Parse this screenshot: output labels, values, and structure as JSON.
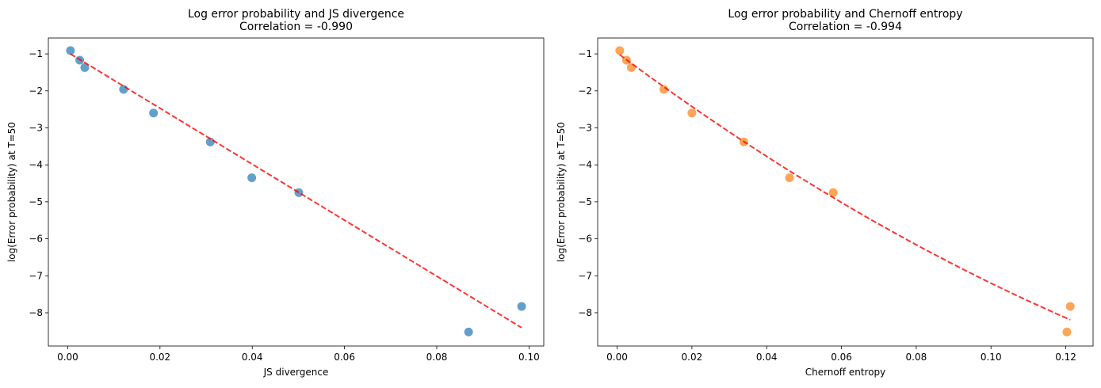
{
  "chart_data": [
    {
      "type": "scatter",
      "title": "Log error probability and JS divergence",
      "subtitle": "Correlation = -0.990",
      "xlabel": "JS divergence",
      "ylabel": "log(Error probability) at T=50",
      "xlim": [
        -0.0042,
        0.1032
      ],
      "ylim": [
        -8.9,
        -0.57
      ],
      "xticks": [
        0.0,
        0.02,
        0.04,
        0.06,
        0.08,
        0.1
      ],
      "xtick_labels": [
        "0.00",
        "0.02",
        "0.04",
        "0.06",
        "0.08",
        "0.10"
      ],
      "yticks": [
        -1,
        -2,
        -3,
        -4,
        -5,
        -6,
        -7,
        -8
      ],
      "ytick_labels": [
        "−1",
        "−2",
        "−3",
        "−4",
        "−5",
        "−6",
        "−7",
        "−8"
      ],
      "grid": false,
      "point_color": "#1f77b4",
      "x": [
        0.0006,
        0.0026,
        0.0037,
        0.0121,
        0.0186,
        0.0309,
        0.0399,
        0.0501,
        0.0869,
        0.0984
      ],
      "y": [
        -0.91,
        -1.17,
        -1.37,
        -1.96,
        -2.6,
        -3.38,
        -4.35,
        -4.75,
        -8.52,
        -7.83
      ],
      "fit": {
        "color": "#ff0000",
        "style": "dashed",
        "coefficients": [
          -0.955,
          -75.7,
          0
        ]
      }
    },
    {
      "type": "scatter",
      "title": "Log error probability and Chernoff entropy",
      "subtitle": "Correlation = -0.994",
      "xlabel": "Chernoff entropy",
      "ylabel": "log(Error probability) at T=50",
      "xlim": [
        -0.0052,
        0.1273
      ],
      "ylim": [
        -8.9,
        -0.57
      ],
      "xticks": [
        0.0,
        0.02,
        0.04,
        0.06,
        0.08,
        0.1,
        0.12
      ],
      "xtick_labels": [
        "0.00",
        "0.02",
        "0.04",
        "0.06",
        "0.08",
        "0.10",
        "0.12"
      ],
      "yticks": [
        -1,
        -2,
        -3,
        -4,
        -5,
        -6,
        -7,
        -8
      ],
      "ytick_labels": [
        "−1",
        "−2",
        "−3",
        "−4",
        "−5",
        "−6",
        "−7",
        "−8"
      ],
      "grid": false,
      "point_color": "#ff7f0e",
      "x": [
        0.0007,
        0.0025,
        0.0038,
        0.0125,
        0.02,
        0.0339,
        0.0461,
        0.0578,
        0.1203,
        0.1212
      ],
      "y": [
        -0.91,
        -1.17,
        -1.37,
        -1.96,
        -2.6,
        -3.38,
        -4.35,
        -4.75,
        -8.52,
        -7.83
      ],
      "fit": {
        "color": "#ff0000",
        "style": "dashed",
        "coefficients": [
          -0.97,
          -75.2,
          129
        ]
      }
    }
  ]
}
